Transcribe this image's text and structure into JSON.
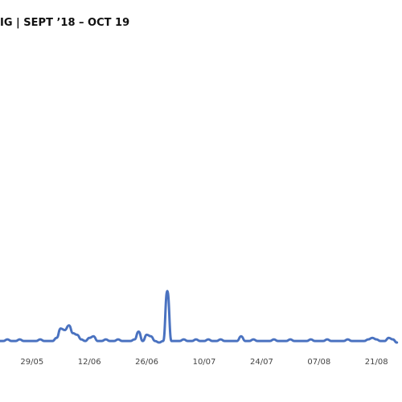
{
  "chart_data": {
    "type": "line",
    "title": "IG | SEPT ’18 – OCT 19",
    "categories": [
      null,
      null,
      null,
      null,
      null,
      null,
      null,
      null,
      "29/05",
      null,
      null,
      null,
      null,
      null,
      null,
      null,
      null,
      null,
      null,
      null,
      null,
      null,
      "12/06",
      null,
      null,
      null,
      null,
      null,
      null,
      null,
      null,
      null,
      null,
      null,
      null,
      null,
      "26/06",
      null,
      null,
      null,
      null,
      null,
      null,
      null,
      null,
      null,
      null,
      null,
      null,
      null,
      "10/07",
      null,
      null,
      null,
      null,
      null,
      null,
      null,
      null,
      null,
      null,
      null,
      null,
      null,
      "24/07",
      null,
      null,
      null,
      null,
      null,
      null,
      null,
      null,
      null,
      null,
      null,
      null,
      null,
      "07/08",
      null,
      null,
      null,
      null,
      null,
      null,
      null,
      null,
      null,
      null,
      null,
      null,
      null,
      "21/08",
      null,
      null,
      null,
      null,
      null
    ],
    "series": [
      {
        "color": "#4a72c0",
        "values": [
          1,
          1,
          1.5,
          1,
          1,
          1.5,
          1,
          1,
          1,
          1,
          1.5,
          1,
          1,
          1,
          2,
          5,
          4.5,
          6,
          3.5,
          3,
          1.5,
          1,
          2,
          2.5,
          1,
          1,
          1.5,
          1,
          1,
          1.5,
          1,
          1,
          1,
          1.5,
          4,
          1,
          3,
          2.5,
          1,
          0.5,
          1,
          17,
          1,
          1,
          1,
          1.5,
          1,
          1,
          1.5,
          1,
          1,
          1.5,
          1,
          1,
          1.5,
          1,
          1,
          1,
          1,
          2.5,
          1,
          1,
          1.5,
          1,
          1,
          1,
          1,
          1.5,
          1,
          1,
          1,
          1.5,
          1,
          1,
          1,
          1,
          1.5,
          1,
          1,
          1,
          1.5,
          1,
          1,
          1,
          1,
          1.5,
          1,
          1,
          1,
          1,
          1.5,
          2,
          1.5,
          1,
          1,
          2,
          1.5,
          0.5
        ]
      }
    ],
    "ylim": [
      0,
      100
    ]
  }
}
